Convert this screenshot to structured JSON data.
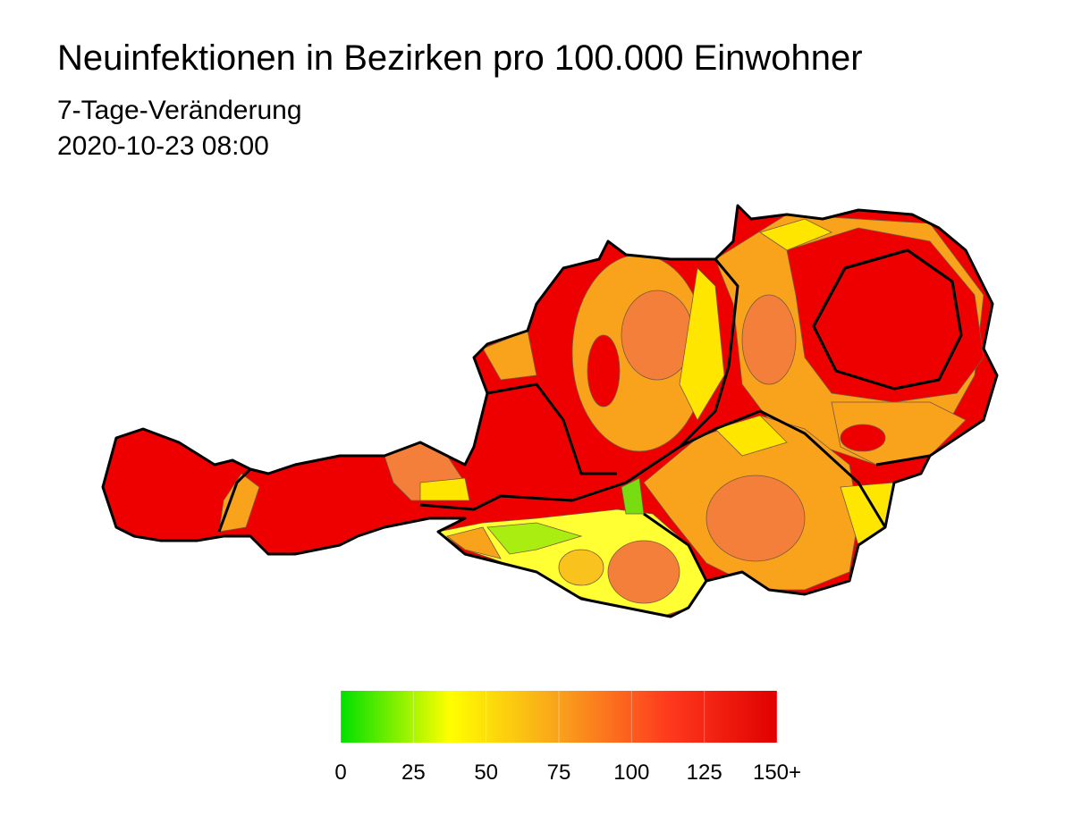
{
  "title": "Neuinfektionen in Bezirken pro 100.000 Einwohner",
  "subtitle": "7-Tage-Veränderung",
  "timestamp": "2020-10-23 08:00",
  "legend": {
    "range": [
      0,
      150
    ],
    "ticks": [
      0,
      25,
      50,
      75,
      100,
      125,
      {
        "value": 150,
        "label": "150+"
      }
    ],
    "colors": [
      "#00e000",
      "#ffff00",
      "#f9a21c",
      "#ff3a1e",
      "#e00000"
    ]
  }
}
